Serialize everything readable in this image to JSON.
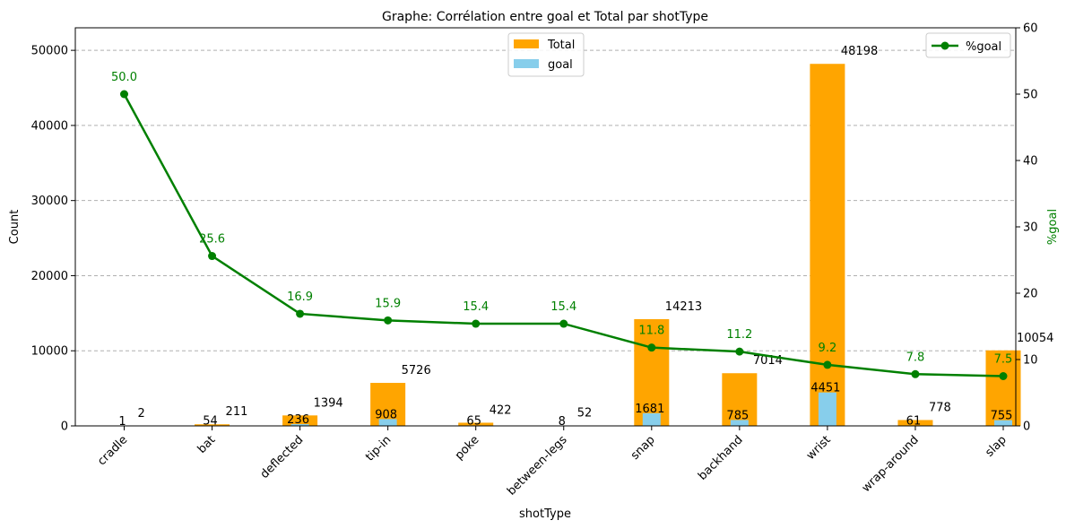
{
  "chart_data": {
    "type": "bar",
    "title": "Graphe: Corrélation entre goal et Total par shotType",
    "xlabel": "shotType",
    "ylabel": "Count",
    "y2label": "%goal",
    "ylim": [
      0,
      53000
    ],
    "y2lim": [
      0,
      60
    ],
    "yticks": [
      0,
      10000,
      20000,
      30000,
      40000,
      50000
    ],
    "y2ticks": [
      0,
      10,
      20,
      30,
      40,
      50,
      60
    ],
    "grid": true,
    "categories": [
      "cradle",
      "bat",
      "deflected",
      "tip-in",
      "poke",
      "between-legs",
      "snap",
      "backhand",
      "wrist",
      "wrap-around",
      "slap"
    ],
    "series": [
      {
        "name": "Total",
        "type": "bar",
        "color": "#ffa500",
        "values": [
          2,
          211,
          1394,
          5726,
          422,
          52,
          14213,
          7014,
          48198,
          778,
          10054
        ]
      },
      {
        "name": "goal",
        "type": "bar",
        "color": "#87ceeb",
        "values": [
          1,
          54,
          236,
          908,
          65,
          8,
          1681,
          785,
          4451,
          61,
          755
        ]
      },
      {
        "name": "%goal",
        "type": "line",
        "axis": "right",
        "color": "#008000",
        "values": [
          50.0,
          25.6,
          16.9,
          15.9,
          15.4,
          15.4,
          11.8,
          11.2,
          9.2,
          7.8,
          7.5
        ]
      }
    ],
    "legend_bars": "top-center",
    "legend_line": "top-right"
  }
}
